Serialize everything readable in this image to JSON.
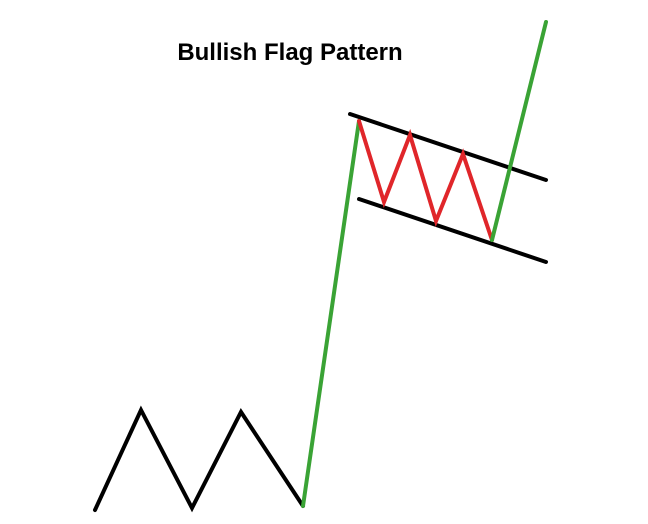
{
  "title": "Bullish Flag Pattern",
  "colors": {
    "background": "#ffffff",
    "text": "#000000",
    "baseline_zigzag": "#000000",
    "flagpole": "#3aa335",
    "flag_oscillation": "#e0262a",
    "flag_channel": "#000000",
    "breakout": "#3aa335"
  }
}
